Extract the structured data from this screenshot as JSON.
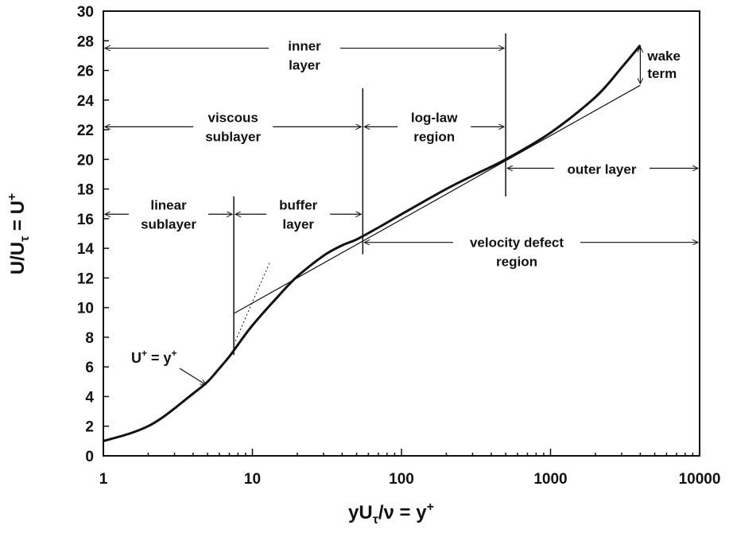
{
  "chart_data": {
    "type": "line",
    "xlabel": {
      "main": "yU",
      "sub": "τ",
      "rest": "/ν = y",
      "sup": "+"
    },
    "ylabel": {
      "main": "U/U",
      "sub": "τ",
      "rest": " = U",
      "sup": "+"
    },
    "xscale": "log",
    "xlim": [
      1,
      10000
    ],
    "ylim": [
      0,
      30
    ],
    "xticks": [
      1,
      10,
      100,
      1000,
      10000
    ],
    "xtick_labels": [
      "1",
      "10",
      "100",
      "1000",
      "10000"
    ],
    "yticks": [
      0,
      2,
      4,
      6,
      8,
      10,
      12,
      14,
      16,
      18,
      20,
      22,
      24,
      26,
      28,
      30
    ],
    "ytick_labels": [
      "0",
      "2",
      "4",
      "6",
      "8",
      "10",
      "12",
      "14",
      "16",
      "18",
      "20",
      "22",
      "24",
      "26",
      "28",
      "30"
    ],
    "grid": false,
    "series": [
      {
        "role": "velocity-profile",
        "x": [
          1,
          1.5,
          2,
          2.5,
          3,
          4,
          5,
          6,
          7,
          8,
          10,
          15,
          20,
          30,
          40,
          50,
          70,
          100,
          200,
          300,
          500,
          1000,
          2000,
          3000,
          4000
        ],
        "y": [
          1.0,
          1.5,
          2.0,
          2.6,
          3.2,
          4.2,
          5.0,
          5.9,
          6.7,
          7.5,
          8.8,
          10.8,
          12.1,
          13.5,
          14.2,
          14.6,
          15.4,
          16.3,
          18.0,
          18.9,
          20.0,
          21.8,
          24.2,
          26.2,
          27.7
        ]
      },
      {
        "role": "log-law-line",
        "x": [
          7.5,
          4000
        ],
        "y": [
          9.6,
          25.0
        ]
      },
      {
        "role": "linear-law-extension",
        "x": [
          7.5,
          13
        ],
        "y": [
          7.5,
          13.0
        ]
      }
    ],
    "dividers": [
      {
        "x": 7.5,
        "y_from": 6.8,
        "y_to": 17.5
      },
      {
        "x": 55,
        "y_from": 13.6,
        "y_to": 24.8
      },
      {
        "x": 500,
        "y_from": 17.5,
        "y_to": 28.5
      }
    ],
    "annotations": {
      "inner_layer": {
        "lines": [
          "inner",
          "layer"
        ],
        "x_from": 1,
        "x_to": 500,
        "y": 27.5
      },
      "viscous_sublayer": {
        "lines": [
          "viscous",
          "sublayer"
        ],
        "x_from": 1,
        "x_to": 55,
        "y": 22.2
      },
      "log_law_region": {
        "lines": [
          "log-law",
          "region"
        ],
        "x_from": 55,
        "x_to": 500,
        "y": 22.2
      },
      "linear_sublayer": {
        "lines": [
          "linear",
          "sublayer"
        ],
        "x_from": 1,
        "x_to": 7.5,
        "y": 16.3
      },
      "buffer_layer": {
        "lines": [
          "buffer",
          "layer"
        ],
        "x_from": 7.5,
        "x_to": 55,
        "y": 16.3
      },
      "outer_layer": {
        "lines": [
          "outer layer"
        ],
        "x_from": 500,
        "x_to": 10000,
        "y": 19.4
      },
      "velocity_defect_region": {
        "lines": [
          "velocity defect",
          "region"
        ],
        "x_from": 55,
        "x_to": 10000,
        "y": 14.4
      },
      "wake_term": {
        "lines": [
          "wake",
          "term"
        ],
        "x": 4000,
        "y_from": 25.0,
        "y_to": 27.7
      },
      "linear_law_label": {
        "main": "U",
        "sup1": "+",
        "mid": " = y",
        "sup2": "+",
        "arrow_to_x": 5,
        "arrow_to_y": 4.9
      }
    }
  }
}
